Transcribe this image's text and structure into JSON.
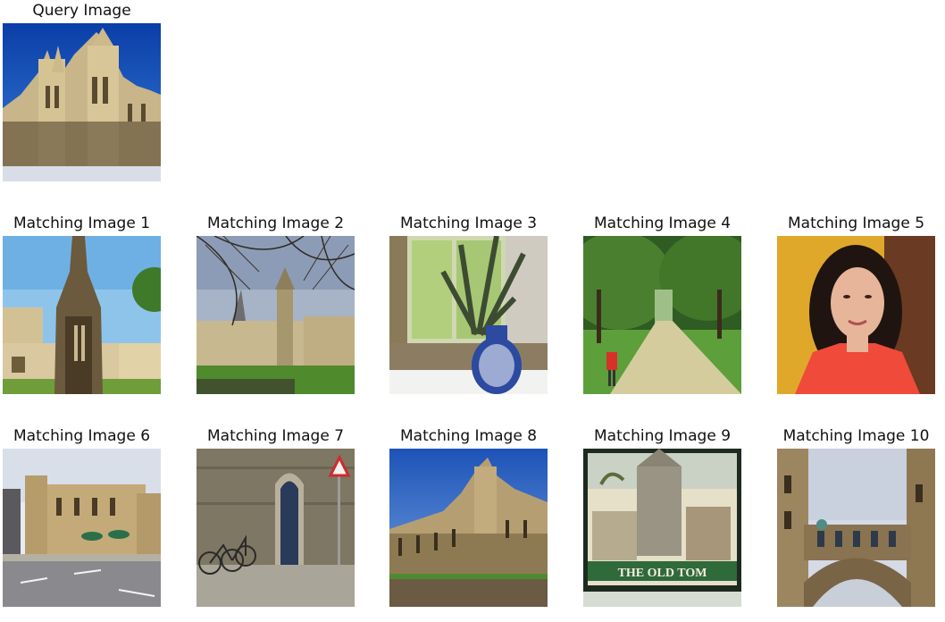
{
  "query": {
    "title": "Query Image",
    "icon": "gothic-college-tower-photo"
  },
  "matches": [
    {
      "title": "Matching Image 1",
      "icon": "gothic-spire-monument-photo"
    },
    {
      "title": "Matching Image 2",
      "icon": "college-lawn-bare-tree-photo"
    },
    {
      "title": "Matching Image 3",
      "icon": "window-vase-plant-photo"
    },
    {
      "title": "Matching Image 4",
      "icon": "tree-lined-avenue-photo"
    },
    {
      "title": "Matching Image 5",
      "icon": "woman-portrait-photo"
    },
    {
      "title": "Matching Image 6",
      "icon": "castellated-building-street-photo"
    },
    {
      "title": "Matching Image 7",
      "icon": "stone-doorway-bicycles-photo"
    },
    {
      "title": "Matching Image 8",
      "icon": "gothic-college-facade-photo"
    },
    {
      "title": "Matching Image 9",
      "icon": "the-old-tom-pub-sign-photo",
      "sign_text": "THE OLD TOM"
    },
    {
      "title": "Matching Image 10",
      "icon": "bridge-of-sighs-photo"
    }
  ]
}
